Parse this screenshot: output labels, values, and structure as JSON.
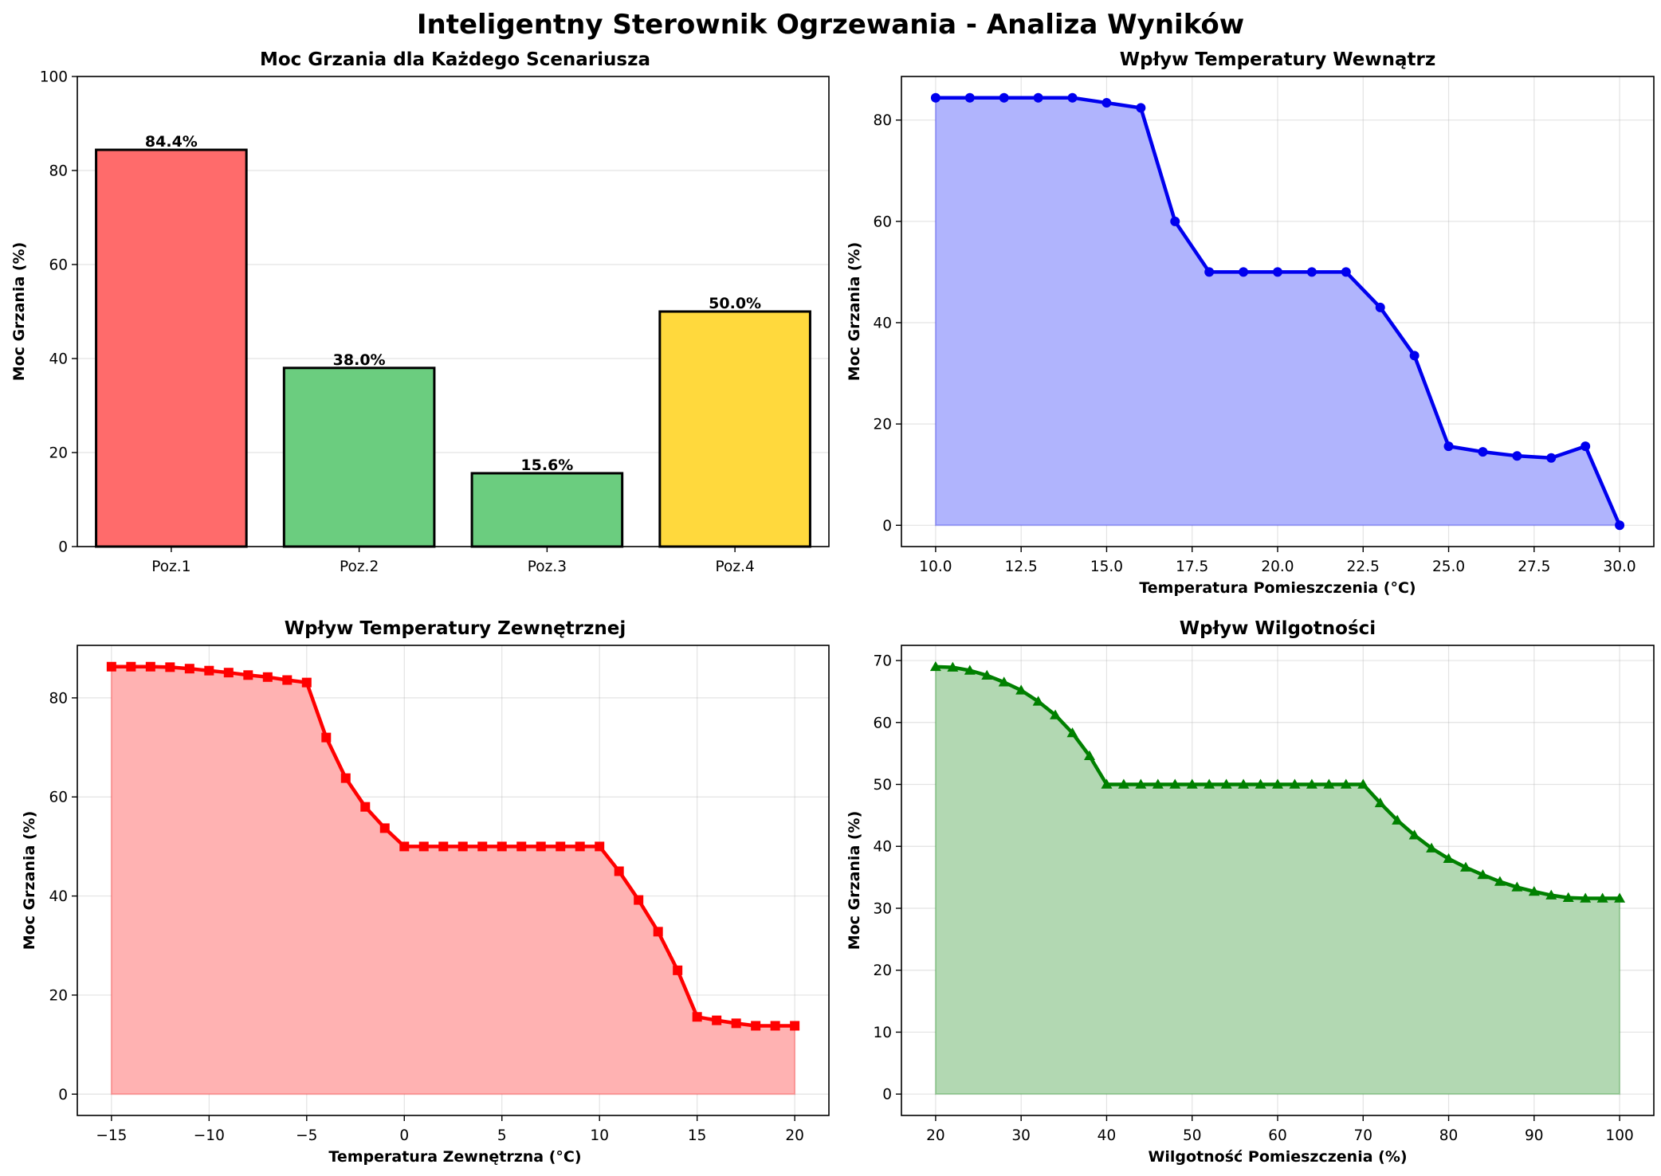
{
  "title": "Inteligentny Sterownik Ogrzewania - Analiza Wyników",
  "chart_data": [
    {
      "type": "bar",
      "title": "Moc Grzania dla Każdego Scenariusza",
      "xlabel": "",
      "ylabel": "Moc Grzania (%)",
      "categories": [
        "Poz.1",
        "Poz.2",
        "Poz.3",
        "Poz.4"
      ],
      "values": [
        84.4,
        38.0,
        15.6,
        50.0
      ],
      "value_labels": [
        "84.4%",
        "38.0%",
        "15.6%",
        "50.0%"
      ],
      "colors": [
        "#ff6b6b",
        "#6bcd7f",
        "#6bcd7f",
        "#ffd93d"
      ],
      "ylim": [
        0,
        100
      ],
      "yticks": [
        0,
        20,
        40,
        60,
        80,
        100
      ],
      "grid": true
    },
    {
      "type": "area",
      "title": "Wpływ Temperatury Wewnątrz",
      "xlabel": "Temperatura Pomieszczenia (°C)",
      "ylabel": "Moc Grzania (%)",
      "x": [
        10,
        11,
        12,
        13,
        14,
        15,
        16,
        17,
        18,
        19,
        20,
        21,
        22,
        23,
        24,
        25,
        26,
        27,
        28,
        29,
        30
      ],
      "y": [
        84.4,
        84.4,
        84.4,
        84.4,
        84.4,
        83.4,
        82.4,
        60.0,
        50.0,
        50.0,
        50.0,
        50.0,
        50.0,
        43.0,
        33.5,
        15.6,
        14.5,
        13.7,
        13.3,
        15.6,
        0.0
      ],
      "xlim": [
        9.0,
        31.0
      ],
      "ylim": [
        -4.2,
        88.6
      ],
      "xticks": [
        10.0,
        12.5,
        15.0,
        17.5,
        20.0,
        22.5,
        25.0,
        27.5,
        30.0
      ],
      "xtick_labels": [
        "10.0",
        "12.5",
        "15.0",
        "17.5",
        "20.0",
        "22.5",
        "25.0",
        "27.5",
        "30.0"
      ],
      "yticks": [
        0,
        20,
        40,
        60,
        80
      ],
      "color": "#0000ee",
      "fill": "#b0b4fd",
      "marker": "circle",
      "grid": true
    },
    {
      "type": "area",
      "title": "Wpływ Temperatury Zewnętrznej",
      "xlabel": "Temperatura Zewnętrzna (°C)",
      "ylabel": "Moc Grzania (%)",
      "x": [
        -15,
        -14,
        -13,
        -12,
        -11,
        -10,
        -9,
        -8,
        -7,
        -6,
        -5,
        -4,
        -3,
        -2,
        -1,
        0,
        1,
        2,
        3,
        4,
        5,
        6,
        7,
        8,
        9,
        10,
        11,
        12,
        13,
        14,
        15,
        16,
        17,
        18,
        19,
        20
      ],
      "y": [
        86.3,
        86.3,
        86.3,
        86.2,
        85.9,
        85.5,
        85.1,
        84.6,
        84.2,
        83.6,
        83.1,
        72.0,
        63.8,
        58.0,
        53.7,
        50.0,
        50.0,
        50.0,
        50.0,
        50.0,
        50.0,
        50.0,
        50.0,
        50.0,
        50.0,
        50.0,
        45.0,
        39.2,
        32.8,
        25.0,
        15.6,
        14.9,
        14.3,
        13.8,
        13.8,
        13.8
      ],
      "xlim": [
        -16.75,
        21.75
      ],
      "ylim": [
        -4.3,
        90.6
      ],
      "xticks": [
        -15,
        -10,
        -5,
        0,
        5,
        10,
        15,
        20
      ],
      "xtick_labels": [
        "−15",
        "−10",
        "−5",
        "0",
        "5",
        "10",
        "15",
        "20"
      ],
      "yticks": [
        0,
        20,
        40,
        60,
        80
      ],
      "color": "#ff0000",
      "fill": "#ffb2b2",
      "marker": "square",
      "grid": true
    },
    {
      "type": "area",
      "title": "Wpływ Wilgotności",
      "xlabel": "Wilgotność Pomieszczenia (%)",
      "ylabel": "Moc Grzania (%)",
      "x": [
        20,
        22,
        24,
        26,
        28,
        30,
        32,
        34,
        36,
        38,
        40,
        42,
        44,
        46,
        48,
        50,
        52,
        54,
        56,
        58,
        60,
        62,
        64,
        66,
        68,
        70,
        72,
        74,
        76,
        78,
        80,
        82,
        84,
        86,
        88,
        90,
        92,
        94,
        96,
        98,
        100
      ],
      "y": [
        69.0,
        68.9,
        68.4,
        67.6,
        66.5,
        65.2,
        63.4,
        61.2,
        58.3,
        54.6,
        50.0,
        50.0,
        50.0,
        50.0,
        50.0,
        50.0,
        50.0,
        50.0,
        50.0,
        50.0,
        50.0,
        50.0,
        50.0,
        50.0,
        50.0,
        50.0,
        47.0,
        44.2,
        41.8,
        39.7,
        38.0,
        36.6,
        35.4,
        34.3,
        33.4,
        32.7,
        32.1,
        31.7,
        31.6,
        31.6,
        31.6
      ],
      "xlim": [
        16.0,
        104.0
      ],
      "ylim": [
        -3.45,
        72.45
      ],
      "xticks": [
        20,
        30,
        40,
        50,
        60,
        70,
        80,
        90,
        100
      ],
      "xtick_labels": [
        "20",
        "30",
        "40",
        "50",
        "60",
        "70",
        "80",
        "90",
        "100"
      ],
      "yticks": [
        0,
        10,
        20,
        30,
        40,
        50,
        60,
        70
      ],
      "color": "#008000",
      "fill": "#b2d8b2",
      "marker": "triangle",
      "grid": true
    }
  ]
}
